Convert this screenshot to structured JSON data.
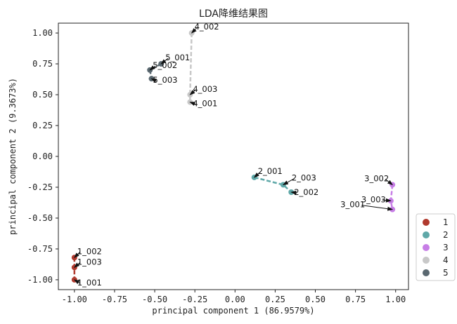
{
  "chart_data": {
    "type": "scatter",
    "title": "LDA降维结果图",
    "xlabel": "principal component 1 (86.9579%)",
    "ylabel": "principal component 2 (9.3673%)",
    "xlim": [
      -1.1,
      1.08
    ],
    "ylim": [
      -1.08,
      1.08
    ],
    "xticks": [
      "-1.00",
      "-0.75",
      "-0.50",
      "-0.25",
      "0.00",
      "0.25",
      "0.50",
      "0.75",
      "1.00"
    ],
    "yticks": [
      "1.00",
      "0.75",
      "0.50",
      "0.25",
      "0.00",
      "-0.25",
      "-0.50",
      "-0.75",
      "-1.00"
    ],
    "legend_position": "right",
    "series": [
      {
        "name": "1",
        "color": "#b03a2e",
        "points": [
          {
            "label": "1_002",
            "x": -1.0,
            "y": -0.82
          },
          {
            "label": "1_003",
            "x": -1.0,
            "y": -0.9
          },
          {
            "label": "1_001",
            "x": -1.0,
            "y": -1.0
          }
        ]
      },
      {
        "name": "2",
        "color": "#5fa8a8",
        "points": [
          {
            "label": "2_001",
            "x": 0.12,
            "y": -0.17
          },
          {
            "label": "2_003",
            "x": 0.3,
            "y": -0.23
          },
          {
            "label": "2_002",
            "x": 0.35,
            "y": -0.29
          }
        ]
      },
      {
        "name": "3",
        "color": "#c77ee6",
        "points": [
          {
            "label": "3_002",
            "x": 0.98,
            "y": -0.23
          },
          {
            "label": "3_003",
            "x": 0.97,
            "y": -0.36
          },
          {
            "label": "3_001",
            "x": 0.98,
            "y": -0.43
          }
        ]
      },
      {
        "name": "4",
        "color": "#c8c8c8",
        "points": [
          {
            "label": "4_002",
            "x": -0.27,
            "y": 1.0
          },
          {
            "label": "4_003",
            "x": -0.28,
            "y": 0.5
          },
          {
            "label": "4_001",
            "x": -0.28,
            "y": 0.44
          }
        ]
      },
      {
        "name": "5",
        "color": "#5a6870",
        "points": [
          {
            "label": "5_001",
            "x": -0.46,
            "y": 0.75
          },
          {
            "label": "5_002",
            "x": -0.53,
            "y": 0.7
          },
          {
            "label": "5_003",
            "x": -0.52,
            "y": 0.63
          }
        ]
      }
    ]
  }
}
